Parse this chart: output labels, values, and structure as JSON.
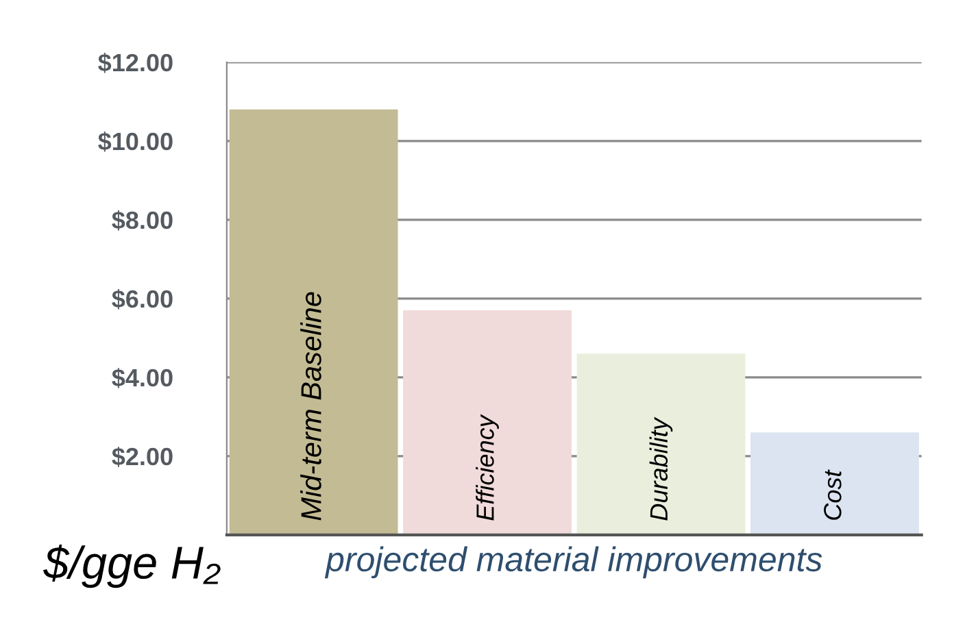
{
  "chart_data": {
    "type": "bar",
    "categories": [
      "Mid-term Baseline",
      "Efficiency",
      "Durability",
      "Cost"
    ],
    "values": [
      10.8,
      5.7,
      4.6,
      2.6
    ],
    "colors": [
      "#c3bb93",
      "#f0dada",
      "#eaeedd",
      "#dbe4f0"
    ],
    "ylim": [
      0,
      12
    ],
    "yticks": [
      {
        "value": 2,
        "label": "$2.00"
      },
      {
        "value": 4,
        "label": "$4.00"
      },
      {
        "value": 6,
        "label": "$6.00"
      },
      {
        "value": 8,
        "label": "$8.00"
      },
      {
        "value": 10,
        "label": "$10.00"
      },
      {
        "value": 12,
        "label": "$12.00"
      }
    ],
    "ylabel": "$/gge H₂",
    "xlabel": "projected material improvements",
    "grid": "y",
    "legend": false
  }
}
